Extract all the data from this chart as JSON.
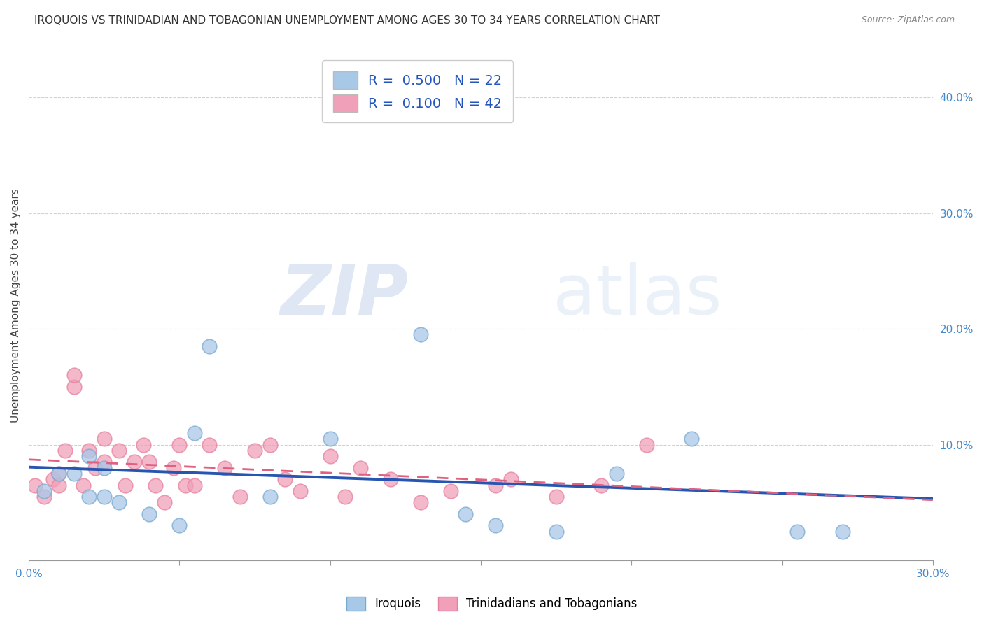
{
  "title": "IROQUOIS VS TRINIDADIAN AND TOBAGONIAN UNEMPLOYMENT AMONG AGES 30 TO 34 YEARS CORRELATION CHART",
  "source": "Source: ZipAtlas.com",
  "ylabel": "Unemployment Among Ages 30 to 34 years",
  "xlim": [
    0.0,
    0.3
  ],
  "ylim": [
    0.0,
    0.44
  ],
  "xticks": [
    0.0,
    0.05,
    0.1,
    0.15,
    0.2,
    0.25,
    0.3
  ],
  "xticklabels": [
    "0.0%",
    "",
    "",
    "",
    "",
    "",
    "30.0%"
  ],
  "yticks": [
    0.0,
    0.1,
    0.2,
    0.3,
    0.4
  ],
  "yticklabels": [
    "",
    "10.0%",
    "20.0%",
    "30.0%",
    "40.0%"
  ],
  "watermark_zip": "ZIP",
  "watermark_atlas": "atlas",
  "blue_color": "#a8c8e8",
  "pink_color": "#f0a0b8",
  "blue_edge_color": "#7aaad0",
  "pink_edge_color": "#e880a0",
  "blue_line_color": "#2855b0",
  "pink_line_color": "#e06080",
  "iroquois_x": [
    0.005,
    0.01,
    0.015,
    0.02,
    0.02,
    0.025,
    0.025,
    0.03,
    0.04,
    0.05,
    0.055,
    0.06,
    0.08,
    0.1,
    0.13,
    0.145,
    0.155,
    0.175,
    0.195,
    0.22,
    0.255,
    0.27
  ],
  "iroquois_y": [
    0.06,
    0.075,
    0.075,
    0.055,
    0.09,
    0.055,
    0.08,
    0.05,
    0.04,
    0.03,
    0.11,
    0.185,
    0.055,
    0.105,
    0.195,
    0.04,
    0.03,
    0.025,
    0.075,
    0.105,
    0.025,
    0.025
  ],
  "trinidadian_x": [
    0.002,
    0.005,
    0.008,
    0.01,
    0.01,
    0.012,
    0.015,
    0.015,
    0.018,
    0.02,
    0.022,
    0.025,
    0.025,
    0.03,
    0.032,
    0.035,
    0.038,
    0.04,
    0.042,
    0.045,
    0.048,
    0.05,
    0.052,
    0.055,
    0.06,
    0.065,
    0.07,
    0.075,
    0.08,
    0.085,
    0.09,
    0.1,
    0.105,
    0.11,
    0.12,
    0.13,
    0.14,
    0.155,
    0.16,
    0.175,
    0.19,
    0.205
  ],
  "trinidadian_y": [
    0.065,
    0.055,
    0.07,
    0.075,
    0.065,
    0.095,
    0.15,
    0.16,
    0.065,
    0.095,
    0.08,
    0.105,
    0.085,
    0.095,
    0.065,
    0.085,
    0.1,
    0.085,
    0.065,
    0.05,
    0.08,
    0.1,
    0.065,
    0.065,
    0.1,
    0.08,
    0.055,
    0.095,
    0.1,
    0.07,
    0.06,
    0.09,
    0.055,
    0.08,
    0.07,
    0.05,
    0.06,
    0.065,
    0.07,
    0.055,
    0.065,
    0.1
  ],
  "bottom_legend_iroquois": "Iroquois",
  "bottom_legend_trinidadian": "Trinidadians and Tobagonians",
  "title_fontsize": 11,
  "axis_label_fontsize": 11,
  "tick_fontsize": 11,
  "legend_fontsize": 14
}
